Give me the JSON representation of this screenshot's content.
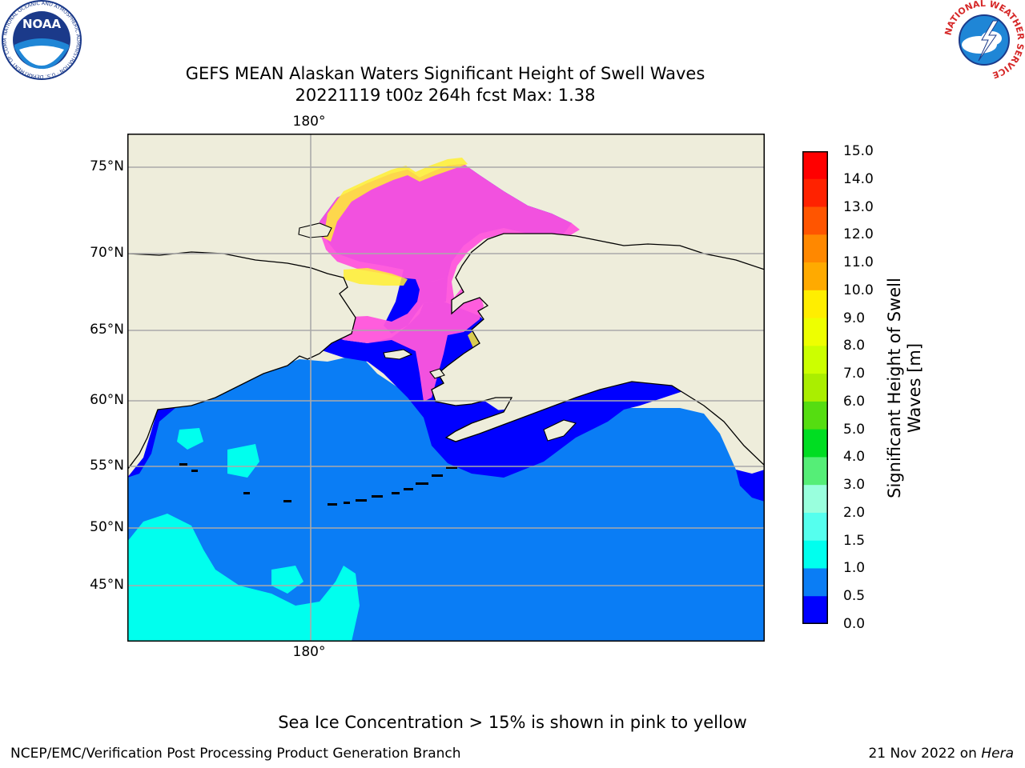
{
  "header": {
    "title_line1": "GEFS MEAN Alaskan Waters Significant Height of Swell Waves",
    "title_line2": "20221119 t00z 264h fcst   Max: 1.38"
  },
  "logos": {
    "noaa_text": "NOAA",
    "noaa_ring_text": "NATIONAL OCEANIC AND ATMOSPHERIC ADMINISTRATION · U.S. DEPARTMENT OF COMMERCE",
    "nws_ring_text": "NATIONAL WEATHER SERVICE"
  },
  "map": {
    "lat_labels": [
      "75°N",
      "70°N",
      "65°N",
      "60°N",
      "55°N",
      "50°N",
      "45°N"
    ],
    "lon_label_top": "180°",
    "lon_label_bottom": "180°",
    "colors": {
      "land": "#eeeddb",
      "ocean_0_0.5": "#0000ff",
      "ocean_0.5_1": "#0a7df5",
      "swell_1_1.5": "#00ffee",
      "ice_pink": "#ff55dd",
      "ice_yellow": "#ffee33"
    }
  },
  "colorbar": {
    "title": "Significant Height of Swell Waves [m]",
    "ticks": [
      "15.0",
      "14.0",
      "13.0",
      "12.0",
      "11.0",
      "10.0",
      "9.0",
      "8.0",
      "7.0",
      "6.0",
      "5.0",
      "4.0",
      "3.0",
      "2.0",
      "1.5",
      "1.0",
      "0.5",
      "0.0"
    ],
    "bins": [
      {
        "range": "14.0-15.0",
        "color": "#ff0000"
      },
      {
        "range": "13.0-14.0",
        "color": "#ff2200"
      },
      {
        "range": "12.0-13.0",
        "color": "#ff5500"
      },
      {
        "range": "11.0-12.0",
        "color": "#ff8800"
      },
      {
        "range": "10.0-11.0",
        "color": "#ffaa00"
      },
      {
        "range": "9.0-10.0",
        "color": "#ffee00"
      },
      {
        "range": "8.0-9.0",
        "color": "#eeff00"
      },
      {
        "range": "7.0-8.0",
        "color": "#ccff00"
      },
      {
        "range": "6.0-7.0",
        "color": "#aaee00"
      },
      {
        "range": "5.0-6.0",
        "color": "#55dd11"
      },
      {
        "range": "4.0-5.0",
        "color": "#00dd22"
      },
      {
        "range": "3.0-4.0",
        "color": "#55ee77"
      },
      {
        "range": "2.0-3.0",
        "color": "#99ffdd"
      },
      {
        "range": "1.5-2.0",
        "color": "#55ffee"
      },
      {
        "range": "1.0-1.5",
        "color": "#00ffee"
      },
      {
        "range": "0.5-1.0",
        "color": "#0a7df5"
      },
      {
        "range": "0.0-0.5",
        "color": "#0000ff"
      }
    ]
  },
  "footer": {
    "note": "Sea Ice Concentration > 15% is shown in pink to yellow",
    "left": "NCEP/EMC/Verification Post Processing Product Generation Branch",
    "right_date": "21 Nov 2022 on ",
    "right_host": "Hera"
  }
}
